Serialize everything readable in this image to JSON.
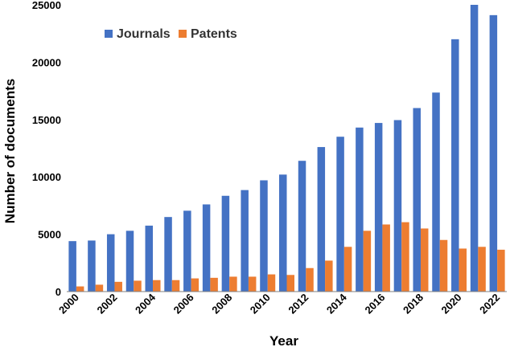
{
  "chart_data": {
    "type": "bar",
    "title": "",
    "xlabel": "Year",
    "ylabel": "Number of documents",
    "ylim": [
      0,
      25000
    ],
    "yticks": [
      0,
      5000,
      10000,
      15000,
      20000,
      25000
    ],
    "categories": [
      "2000",
      "2001",
      "2002",
      "2003",
      "2004",
      "2005",
      "2006",
      "2007",
      "2008",
      "2009",
      "2010",
      "2011",
      "2012",
      "2013",
      "2014",
      "2015",
      "2016",
      "2017",
      "2018",
      "2019",
      "2020",
      "2021",
      "2022"
    ],
    "xtick_labels": [
      "2000",
      "2002",
      "2004",
      "2006",
      "2008",
      "2010",
      "2012",
      "2014",
      "2016",
      "2018",
      "2020",
      "2022"
    ],
    "legend_position": "top-left",
    "grid": false,
    "series": [
      {
        "name": "Journals",
        "color": "#4472C4",
        "values": [
          4400,
          4450,
          5000,
          5300,
          5750,
          6500,
          7050,
          7600,
          8350,
          8850,
          9700,
          10200,
          11400,
          12600,
          13500,
          14300,
          14700,
          14950,
          16000,
          17350,
          22000,
          25000,
          24100
        ]
      },
      {
        "name": "Patents",
        "color": "#ED7D31",
        "values": [
          450,
          600,
          850,
          950,
          1000,
          1000,
          1150,
          1200,
          1300,
          1300,
          1500,
          1450,
          2050,
          2700,
          3900,
          5300,
          5850,
          6050,
          5500,
          4500,
          3750,
          3900,
          3650
        ]
      }
    ]
  }
}
